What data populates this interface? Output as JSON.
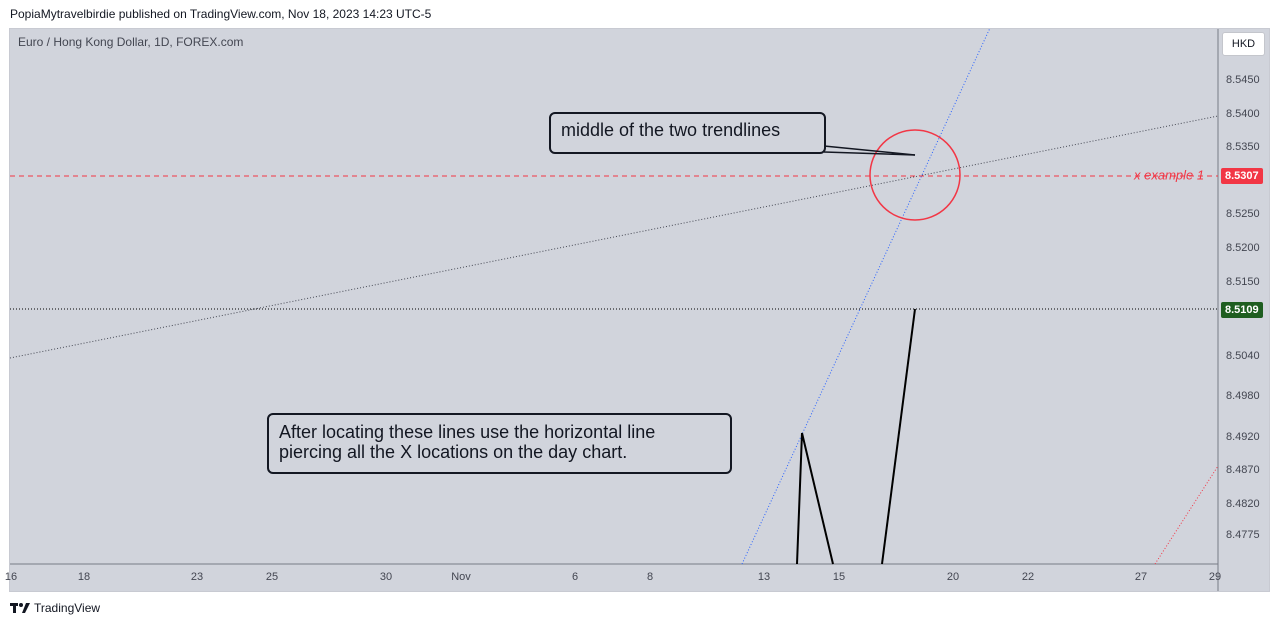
{
  "header": {
    "text": "PopiaMytravelbirdie published on TradingView.com, Nov 18, 2023 14:23 UTC-5"
  },
  "chart_header": {
    "symbol": "Euro / Hong Kong Dollar, 1D, FOREX.com"
  },
  "currency_button": {
    "label": "HKD"
  },
  "footer": {
    "brand": "TradingView"
  },
  "colors": {
    "panel_bg": "#d1d4dc",
    "red": "#f23645",
    "green": "#1e5e20",
    "blue_trend": "#2962ff"
  },
  "chart_data": {
    "type": "line",
    "title": "Euro / Hong Kong Dollar, 1D, FOREX.com",
    "y_ticks": [
      "8.5450",
      "8.5400",
      "8.5350",
      "8.5250",
      "8.5200",
      "8.5150",
      "8.5040",
      "8.4980",
      "8.4920",
      "8.4870",
      "8.4820",
      "8.4775"
    ],
    "x_ticks": [
      "16",
      "18",
      "23",
      "25",
      "30",
      "Nov",
      "6",
      "8",
      "13",
      "15",
      "20",
      "22",
      "27",
      "29"
    ],
    "horizontal_lines": [
      {
        "price": 8.5307,
        "label": "x example 1",
        "style": "dashed",
        "color": "#f23645"
      },
      {
        "price": 8.5109,
        "style": "dotted",
        "color": "#000000"
      }
    ],
    "trendlines": [
      {
        "name": "shallow",
        "style": "dotted",
        "color": "#434651"
      },
      {
        "name": "steep",
        "style": "dotted",
        "color": "#2962ff"
      }
    ],
    "circle_marker": {
      "price": 8.5307,
      "color": "#f23645"
    },
    "annotations": [
      "middle of the two trendlines",
      "After locating these lines use the horizontal line\npiercing all the X locations on the day chart."
    ],
    "price_tags": [
      {
        "value": "8.5307",
        "color": "#f23645"
      },
      {
        "value": "8.5109",
        "color": "#1e5e20"
      }
    ]
  }
}
